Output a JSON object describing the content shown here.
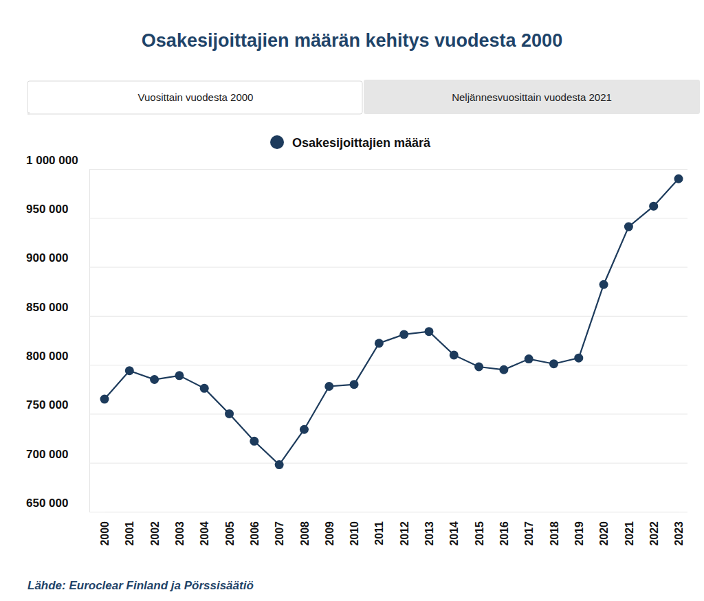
{
  "chart_data": {
    "type": "line",
    "title": "Osakesijoittajien määrän kehitys vuodesta 2000",
    "categories": [
      "2000",
      "2001",
      "2002",
      "2003",
      "2004",
      "2005",
      "2006",
      "2007",
      "2008",
      "2009",
      "2010",
      "2011",
      "2012",
      "2013",
      "2014",
      "2015",
      "2016",
      "2017",
      "2018",
      "2019",
      "2020",
      "2021",
      "2022",
      "2023"
    ],
    "series": [
      {
        "name": "Osakesijoittajien määrä",
        "color": "#1d3b5c",
        "marker": "circle",
        "line_style": "solid",
        "values": [
          765000,
          794000,
          785000,
          789000,
          776000,
          750000,
          722000,
          698000,
          734000,
          778000,
          780000,
          822000,
          831000,
          834000,
          810000,
          798000,
          795000,
          806000,
          801000,
          807000,
          882000,
          941000,
          962000,
          990000
        ]
      }
    ],
    "ylim": [
      650000,
      1000000
    ],
    "yticks": [
      {
        "value": 650000,
        "label": "650 000"
      },
      {
        "value": 700000,
        "label": "700 000"
      },
      {
        "value": 750000,
        "label": "750 000"
      },
      {
        "value": 800000,
        "label": "800 000"
      },
      {
        "value": 850000,
        "label": "850 000"
      },
      {
        "value": 900000,
        "label": "900 000"
      },
      {
        "value": 950000,
        "label": "950 000"
      },
      {
        "value": 1000000,
        "label": "1 000 000"
      }
    ],
    "grid": true,
    "legend": "top"
  },
  "tabs": [
    "Vuosittain vuodesta 2000",
    "Neljännesvuosittain vuodesta 2021"
  ],
  "source": "Lähde: Euroclear Finland ja Pörssisäätiö"
}
